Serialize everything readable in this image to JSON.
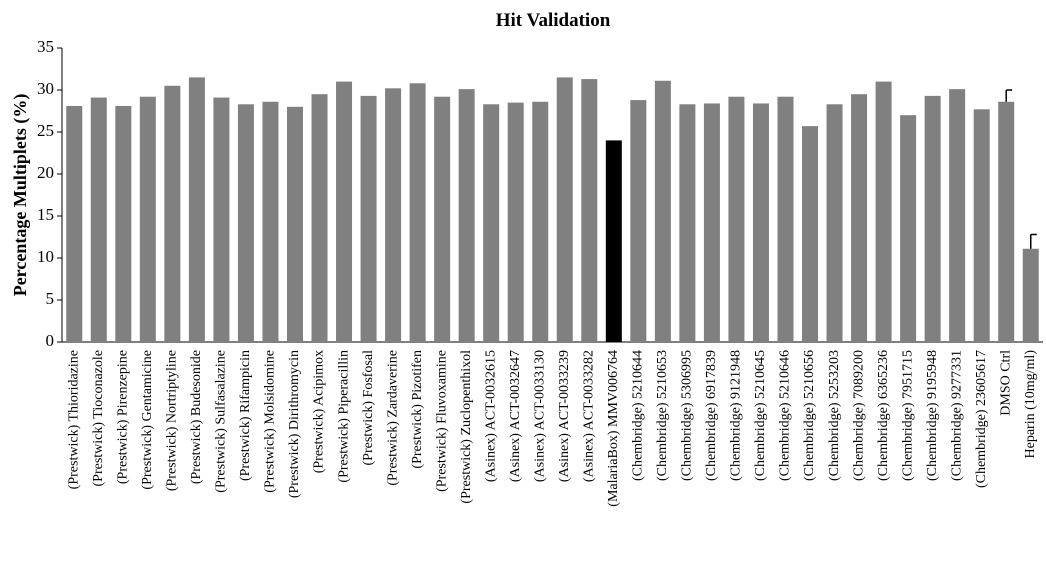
{
  "chart_data": {
    "type": "bar",
    "title": "Hit Validation",
    "y_label": "Percentage Multiplets (%)",
    "categories": [
      "(Prestwick) Thioridazine",
      "(Prestwick) Tioconazole",
      "(Prestwick) Pirenzepine",
      "(Prestwick) Gentamicine",
      "(Prestwick) Nortriptyline",
      "(Prestwick) Budesonide",
      "(Prestwick) Sulfasalazine",
      "(Prestwick) Rifampicin",
      "(Prestwick) Molsidomine",
      "(Prestwick) Dirithromycin",
      "(Prestwick) Acipimox",
      "(Prestwick) Piperacillin",
      "(Prestwick) Fosfosal",
      "(Prestwick) Zardaverine",
      "(Prestwick) Pizotifen",
      "(Prestwick) Fluvoxamine",
      "(Prestwick) Zuclopenthixol",
      "(Asinex) ACT-0032615",
      "(Asinex) ACT-0032647",
      "(Asinex) ACT-0033130",
      "(Asinex) ACT-0033239",
      "(Asinex) ACT-0033282",
      "(MalariaBox) MMV006764",
      "(Chembridge) 5210644",
      "(Chembridge) 5210653",
      "(Chembridge) 5306995",
      "(Chembridge) 6917839",
      "(Chembridge) 9121948",
      "(Chembridge) 5210645",
      "(Chembridge) 5210646",
      "(Chembridge) 5210656",
      "(Chembridge) 5253203",
      "(Chembridge) 7089200",
      "(Chembridge) 6365236",
      "(Chembridge) 7951715",
      "(Chembridge) 9195948",
      "(Chembridge) 9277331",
      "(Chembridge) 23605617",
      "DMSO Ctrl",
      "Heparin (10mg/ml)"
    ],
    "values": [
      28.1,
      29.1,
      28.1,
      29.2,
      30.5,
      31.5,
      29.1,
      28.3,
      28.6,
      28.0,
      29.5,
      31.0,
      29.3,
      30.2,
      30.8,
      29.2,
      30.1,
      28.3,
      28.5,
      28.6,
      31.5,
      31.3,
      24.0,
      28.8,
      31.1,
      28.3,
      28.4,
      29.2,
      28.4,
      29.2,
      25.7,
      28.3,
      29.5,
      31.0,
      27.0,
      29.3,
      30.1,
      27.7,
      28.6,
      11.1
    ],
    "errors": [
      null,
      null,
      null,
      null,
      null,
      null,
      null,
      null,
      null,
      null,
      null,
      null,
      null,
      null,
      null,
      null,
      null,
      null,
      null,
      null,
      null,
      null,
      null,
      null,
      null,
      null,
      null,
      null,
      null,
      null,
      null,
      null,
      null,
      null,
      null,
      null,
      null,
      null,
      1.4,
      1.7
    ],
    "colors": [
      "#808080",
      "#808080",
      "#808080",
      "#808080",
      "#808080",
      "#808080",
      "#808080",
      "#808080",
      "#808080",
      "#808080",
      "#808080",
      "#808080",
      "#808080",
      "#808080",
      "#808080",
      "#808080",
      "#808080",
      "#808080",
      "#808080",
      "#808080",
      "#808080",
      "#808080",
      "#000000",
      "#808080",
      "#808080",
      "#808080",
      "#808080",
      "#808080",
      "#808080",
      "#808080",
      "#808080",
      "#808080",
      "#808080",
      "#808080",
      "#808080",
      "#808080",
      "#808080",
      "#808080",
      "#808080",
      "#808080"
    ],
    "ylim": [
      0,
      35
    ],
    "yticks": [
      0,
      5,
      10,
      15,
      20,
      25,
      30,
      35
    ],
    "grid": false
  }
}
